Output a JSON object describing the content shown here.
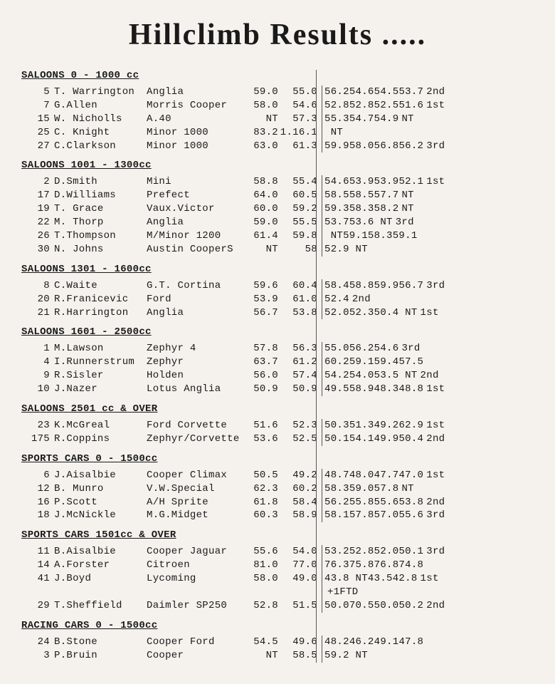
{
  "title": "Hillclimb Results .....",
  "sections": [
    {
      "header": "SALOONS 0 - 1000 cc",
      "rows": [
        {
          "num": "5",
          "name": "T. Warrington",
          "car": "Anglia",
          "p1": "59.0",
          "p2": "55.0",
          "t1": "56.2",
          "t2": "54.6",
          "t3": "54.5",
          "t4": "53.7",
          "place": "2nd"
        },
        {
          "num": "7",
          "name": "G.Allen",
          "car": "Morris Cooper",
          "p1": "58.0",
          "p2": "54.6",
          "t1": "52.8",
          "t2": "52.8",
          "t3": "52.5",
          "t4": "51.6",
          "place": "1st"
        },
        {
          "num": "15",
          "name": "W. Nicholls",
          "car": "A.40",
          "p1": "NT",
          "p2": "57.3",
          "t1": "55.3",
          "t2": "54.7",
          "t3": "54.9",
          "t4": "",
          "place": "NT"
        },
        {
          "num": "25",
          "name": "C. Knight",
          "car": "Minor 1000",
          "p1": "83.2",
          "p2": "1.16.1",
          "t1": " NT",
          "t2": "",
          "t3": "",
          "t4": "",
          "place": ""
        },
        {
          "num": "27",
          "name": "C.Clarkson",
          "car": "Minor 1000",
          "p1": "63.0",
          "p2": "61.3",
          "t1": "59.9",
          "t2": "58.0",
          "t3": "56.8",
          "t4": "56.2",
          "place": "3rd"
        }
      ]
    },
    {
      "header": "SALOONS 1001 - 1300cc",
      "rows": [
        {
          "num": "2",
          "name": "D.Smith",
          "car": "Mini",
          "p1": "58.8",
          "p2": "55.4",
          "t1": "54.6",
          "t2": "53.9",
          "t3": "53.9",
          "t4": "52.1",
          "place": "1st"
        },
        {
          "num": "17",
          "name": "D.Williams",
          "car": "Prefect",
          "p1": "64.0",
          "p2": "60.5",
          "t1": "58.5",
          "t2": "58.5",
          "t3": "57.7",
          "t4": "",
          "place": "NT"
        },
        {
          "num": "19",
          "name": "T. Grace",
          "car": "Vaux.Victor",
          "p1": "60.0",
          "p2": "59.2",
          "t1": "59.3",
          "t2": "58.3",
          "t3": "58.2",
          "t4": "",
          "place": "NT"
        },
        {
          "num": "22",
          "name": "M. Thorp",
          "car": "Anglia",
          "p1": "59.0",
          "p2": "55.5",
          "t1": "53.7",
          "t2": "53.6",
          "t3": " NT",
          "t4": "",
          "place": "3rd"
        },
        {
          "num": "26",
          "name": "T.Thompson",
          "car": "M/Minor 1200",
          "p1": "61.4",
          "p2": "59.8",
          "t1": " NT",
          "t2": "59.1",
          "t3": "58.3",
          "t4": "59.1",
          "place": ""
        },
        {
          "num": "30",
          "name": "N. Johns",
          "car": "Austin CooperS",
          "p1": "NT",
          "p2": "58",
          "t1": "52.9",
          "t2": " NT",
          "t3": "",
          "t4": "",
          "place": ""
        }
      ]
    },
    {
      "header": "SALOONS 1301 - 1600cc",
      "rows": [
        {
          "num": "8",
          "name": "C.Waite",
          "car": "G.T. Cortina",
          "p1": "59.6",
          "p2": "60.4",
          "t1": "58.4",
          "t2": "58.8",
          "t3": "59.9",
          "t4": "56.7",
          "place": "3rd"
        },
        {
          "num": "20",
          "name": "R.Franicevic",
          "car": "Ford",
          "p1": "53.9",
          "p2": "61.0",
          "t1": "52.4",
          "t2": "",
          "t3": "",
          "t4": "",
          "place": "2nd"
        },
        {
          "num": "21",
          "name": "R.Harrington",
          "car": "Anglia",
          "p1": "56.7",
          "p2": "53.8",
          "t1": "52.0",
          "t2": "52.3",
          "t3": "50.4",
          "t4": " NT",
          "place": "1st"
        }
      ]
    },
    {
      "header": "SALOONS 1601 - 2500cc",
      "rows": [
        {
          "num": "1",
          "name": "M.Lawson",
          "car": "Zephyr 4",
          "p1": "57.8",
          "p2": "56.3",
          "t1": "55.0",
          "t2": "56.2",
          "t3": "54.6",
          "t4": "",
          "place": "3rd"
        },
        {
          "num": "4",
          "name": "I.Runnerstrum",
          "car": "Zephyr",
          "p1": "63.7",
          "p2": "61.2",
          "t1": "60.2",
          "t2": "59.1",
          "t3": "59.4",
          "t4": "57.5",
          "place": ""
        },
        {
          "num": "9",
          "name": "R.Sisler",
          "car": "Holden",
          "p1": "56.0",
          "p2": "57.4",
          "t1": "54.2",
          "t2": "54.0",
          "t3": "53.5",
          "t4": " NT",
          "place": "2nd"
        },
        {
          "num": "10",
          "name": "J.Nazer",
          "car": "Lotus Anglia",
          "p1": "50.9",
          "p2": "50.9",
          "t1": "49.5",
          "t2": "58.9",
          "t3": "48.3",
          "t4": "48.8",
          "place": "1st"
        }
      ]
    },
    {
      "header": "SALOONS 2501 cc & OVER",
      "rows": [
        {
          "num": "23",
          "name": "K.McGreal",
          "car": "Ford Corvette",
          "p1": "51.6",
          "p2": "52.3",
          "t1": "50.3",
          "t2": "51.3",
          "t3": "49.2",
          "t4": "62.9",
          "place": "1st"
        },
        {
          "num": "175",
          "name": "R.Coppins",
          "car": "Zephyr/Corvette",
          "p1": "53.6",
          "p2": "52.5",
          "t1": "50.1",
          "t2": "54.1",
          "t3": "49.9",
          "t4": "50.4",
          "place": "2nd"
        }
      ]
    },
    {
      "header": "SPORTS CARS 0 - 1500cc",
      "rows": [
        {
          "num": "6",
          "name": "J.Aisalbie",
          "car": "Cooper Climax",
          "p1": "50.5",
          "p2": "49.2",
          "t1": "48.7",
          "t2": "48.0",
          "t3": "47.7",
          "t4": "47.0",
          "place": "1st"
        },
        {
          "num": "12",
          "name": "B. Munro",
          "car": "V.W.Special",
          "p1": "62.3",
          "p2": "60.2",
          "t1": "58.3",
          "t2": "59.0",
          "t3": "57.8",
          "t4": "",
          "place": "NT"
        },
        {
          "num": "16",
          "name": "P.Scott",
          "car": "A/H Sprite",
          "p1": "61.8",
          "p2": "58.4",
          "t1": "56.2",
          "t2": "55.8",
          "t3": "55.6",
          "t4": "53.8",
          "place": "2nd"
        },
        {
          "num": "18",
          "name": "J.McNickle",
          "car": "M.G.Midget",
          "p1": "60.3",
          "p2": "58.9",
          "t1": "58.1",
          "t2": "57.8",
          "t3": "57.0",
          "t4": "55.6",
          "place": "3rd"
        }
      ]
    },
    {
      "header": "SPORTS CARS 1501cc & OVER",
      "rows": [
        {
          "num": "11",
          "name": "B.Aisalbie",
          "car": "Cooper Jaguar",
          "p1": "55.6",
          "p2": "54.0",
          "t1": "53.2",
          "t2": "52.8",
          "t3": "52.0",
          "t4": "50.1",
          "place": "3rd"
        },
        {
          "num": "14",
          "name": "A.Forster",
          "car": "Citroen",
          "p1": "81.0",
          "p2": "77.0",
          "t1": "76.3",
          "t2": "75.8",
          "t3": "76.8",
          "t4": "74.8",
          "place": ""
        },
        {
          "num": "41",
          "name": "J.Boyd",
          "car": "Lycoming",
          "p1": "58.0",
          "p2": "49.0",
          "t1": "43.8",
          "t2": " NT",
          "t3": "43.5",
          "t4": "42.8",
          "place": "1st"
        },
        {
          "num": "",
          "name": "",
          "car": "",
          "p1": "",
          "p2": "",
          "t1": "",
          "t2": "",
          "t3": "",
          "t4": "",
          "place": "+1FTD"
        },
        {
          "num": "29",
          "name": "T.Sheffield",
          "car": "Daimler SP250",
          "p1": "52.8",
          "p2": "51.5",
          "t1": "50.0",
          "t2": "70.5",
          "t3": "50.0",
          "t4": "50.2",
          "place": "2nd"
        }
      ]
    },
    {
      "header": "RACING CARS 0 - 1500cc",
      "rows": [
        {
          "num": "24",
          "name": "B.Stone",
          "car": "Cooper Ford",
          "p1": "54.5",
          "p2": "49.6",
          "t1": "48.2",
          "t2": "46.2",
          "t3": "49.1",
          "t4": "47.8",
          "place": ""
        },
        {
          "num": "3",
          "name": "P.Bruin",
          "car": "Cooper",
          "p1": "NT",
          "p2": "58.5",
          "t1": "59.2",
          "t2": " NT",
          "t3": "",
          "t4": "",
          "place": ""
        }
      ]
    }
  ]
}
